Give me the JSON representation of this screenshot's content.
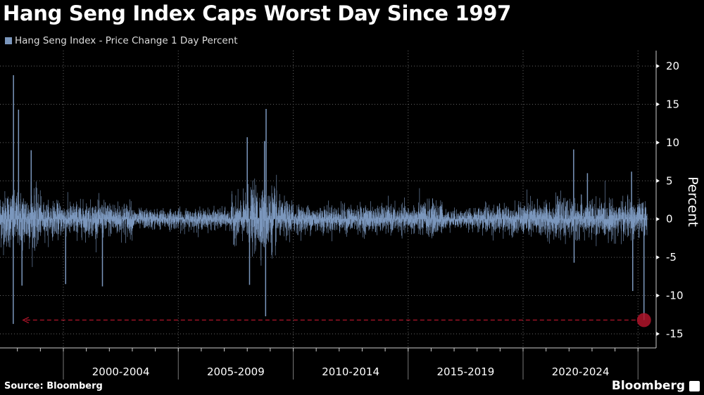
{
  "chart_data": {
    "type": "bar",
    "title": "Hang Seng Index Caps Worst Day Since 1997",
    "legend": [
      "Hang Seng Index - Price Change 1 Day Percent"
    ],
    "legend_placement": "top-left",
    "ylabel": "Percent",
    "xlabel": "",
    "ylim": [
      -17,
      22
    ],
    "yticks": [
      20,
      15,
      10,
      5,
      0,
      -5,
      -10,
      -15
    ],
    "xlim": [
      1997.25,
      2025.4
    ],
    "xticks": [
      "2000-2004",
      "2005-2009",
      "2010-2014",
      "2015-2019",
      "2020-2024"
    ],
    "grid": true,
    "series_color": "#7b97bd",
    "highlight_color": "#b0142a",
    "volatility_regimes": [
      {
        "from": 1997.25,
        "to": 1999.0,
        "typical_abs": 4.0
      },
      {
        "from": 1999.0,
        "to": 2003.0,
        "typical_abs": 2.4
      },
      {
        "from": 2003.0,
        "to": 2007.3,
        "typical_abs": 1.4
      },
      {
        "from": 2007.3,
        "to": 2008.0,
        "typical_abs": 3.0
      },
      {
        "from": 2008.0,
        "to": 2009.3,
        "typical_abs": 4.5
      },
      {
        "from": 2009.3,
        "to": 2010.0,
        "typical_abs": 2.6
      },
      {
        "from": 2010.0,
        "to": 2015.4,
        "typical_abs": 1.9
      },
      {
        "from": 2015.4,
        "to": 2016.5,
        "typical_abs": 2.5
      },
      {
        "from": 2016.5,
        "to": 2018.0,
        "typical_abs": 1.3
      },
      {
        "from": 2018.0,
        "to": 2020.0,
        "typical_abs": 2.0
      },
      {
        "from": 2020.0,
        "to": 2025.4,
        "typical_abs": 2.6
      }
    ],
    "notable_points": [
      {
        "x": 1997.82,
        "value": -13.7
      },
      {
        "x": 1997.83,
        "value": 18.8
      },
      {
        "x": 1998.05,
        "value": 14.3
      },
      {
        "x": 1998.2,
        "value": -8.7
      },
      {
        "x": 1998.6,
        "value": 9.0
      },
      {
        "x": 2000.1,
        "value": -8.5
      },
      {
        "x": 2001.7,
        "value": -8.8
      },
      {
        "x": 2008.0,
        "value": 10.7
      },
      {
        "x": 2008.1,
        "value": -8.6
      },
      {
        "x": 2008.75,
        "value": 10.2
      },
      {
        "x": 2008.8,
        "value": -12.7
      },
      {
        "x": 2008.82,
        "value": 14.4
      },
      {
        "x": 2022.2,
        "value": 9.1
      },
      {
        "x": 2022.22,
        "value": -5.7
      },
      {
        "x": 2022.8,
        "value": 6.0
      },
      {
        "x": 2024.72,
        "value": 6.2
      },
      {
        "x": 2024.77,
        "value": -9.4
      },
      {
        "x": 2025.26,
        "value": -13.2
      }
    ],
    "annotation": {
      "x": 2025.26,
      "value": -13.2,
      "reference_from": 1997.82,
      "style": "dashed arrow to prior low"
    }
  },
  "footer": {
    "source": "Source: Bloomberg",
    "brand": "Bloomberg"
  }
}
